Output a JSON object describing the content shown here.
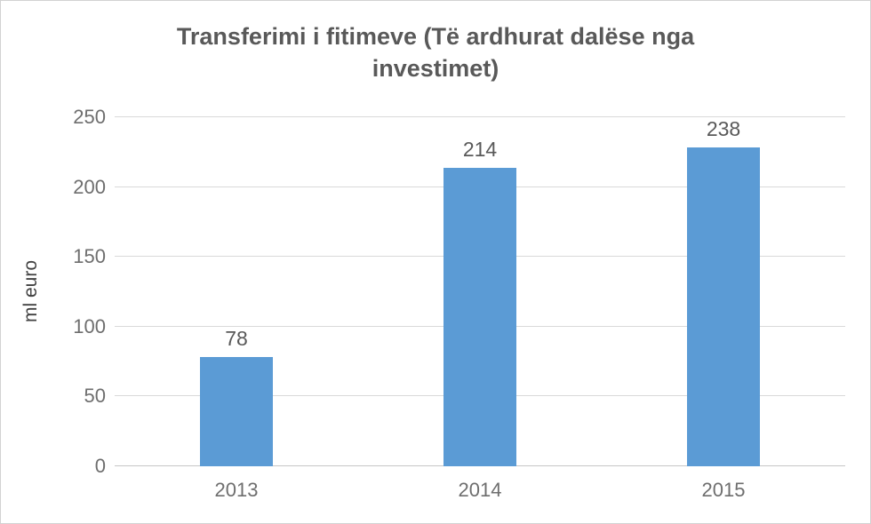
{
  "chart_data": {
    "type": "bar",
    "title": "Transferimi i fitimeve (Të ardhurat dalëse nga investimet)",
    "categories": [
      "2013",
      "2014",
      "2015"
    ],
    "values": [
      78,
      214,
      238
    ],
    "data_labels": [
      "78",
      "214",
      "238"
    ],
    "xlabel": "",
    "ylabel": "ml euro",
    "ylim": [
      0,
      250
    ],
    "ytick_step": 50,
    "ytick_labels": [
      "0",
      "50",
      "100",
      "150",
      "200",
      "250"
    ],
    "grid": "horizontal",
    "legend": "none",
    "bar_color": "#5b9bd5",
    "gridline_color": "#d9d9d9",
    "text_color": "#595959"
  }
}
